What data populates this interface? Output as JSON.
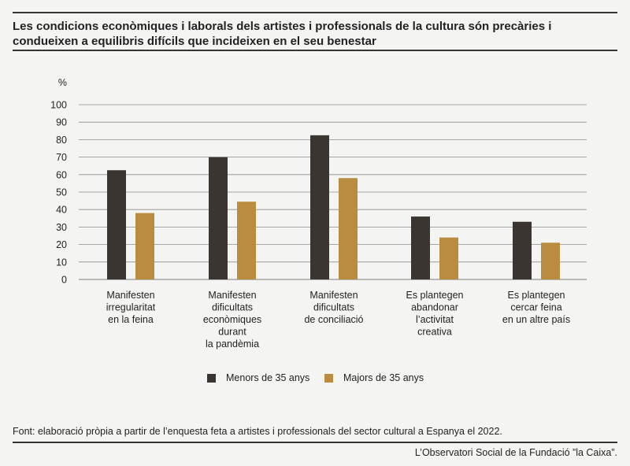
{
  "title": "Les condicions econòmiques i laborals dels artistes i professionals de la cultura són precàries i condueixen a equilibris difícils que incideixen en el seu benestar",
  "source": "Font: elaboració pròpia a partir de l’enquesta feta a artistes i professionals del sector cultural a Espanya el 2022.",
  "credit": "L’Observatori Social de la Fundació ”la Caixa”.",
  "colors": {
    "younger": "#3b3531",
    "older": "#b98c3f",
    "grid": "#8c8c8c",
    "rule": "#333333"
  },
  "chart_data": {
    "type": "bar",
    "ylabel": "%",
    "ylim": [
      0,
      100
    ],
    "yticks": [
      0,
      10,
      20,
      30,
      40,
      50,
      60,
      70,
      80,
      90,
      100
    ],
    "grid": true,
    "legend_position": "bottom",
    "categories": [
      [
        "Manifesten",
        "irregularitat",
        "en la feina"
      ],
      [
        "Manifesten",
        "dificultats",
        "econòmiques",
        "durant",
        "la pandèmia"
      ],
      [
        "Manifesten",
        "dificultats",
        "de conciliació"
      ],
      [
        "Es plantegen",
        "abandonar",
        "l’activitat",
        "creativa"
      ],
      [
        "Es plantegen",
        "cercar feina",
        "en un altre país"
      ]
    ],
    "series": [
      {
        "name": "Menors de 35 anys",
        "values": [
          62.5,
          70,
          82.5,
          36,
          33
        ]
      },
      {
        "name": "Majors de 35 anys",
        "values": [
          38,
          44.5,
          58,
          24,
          21
        ]
      }
    ]
  }
}
